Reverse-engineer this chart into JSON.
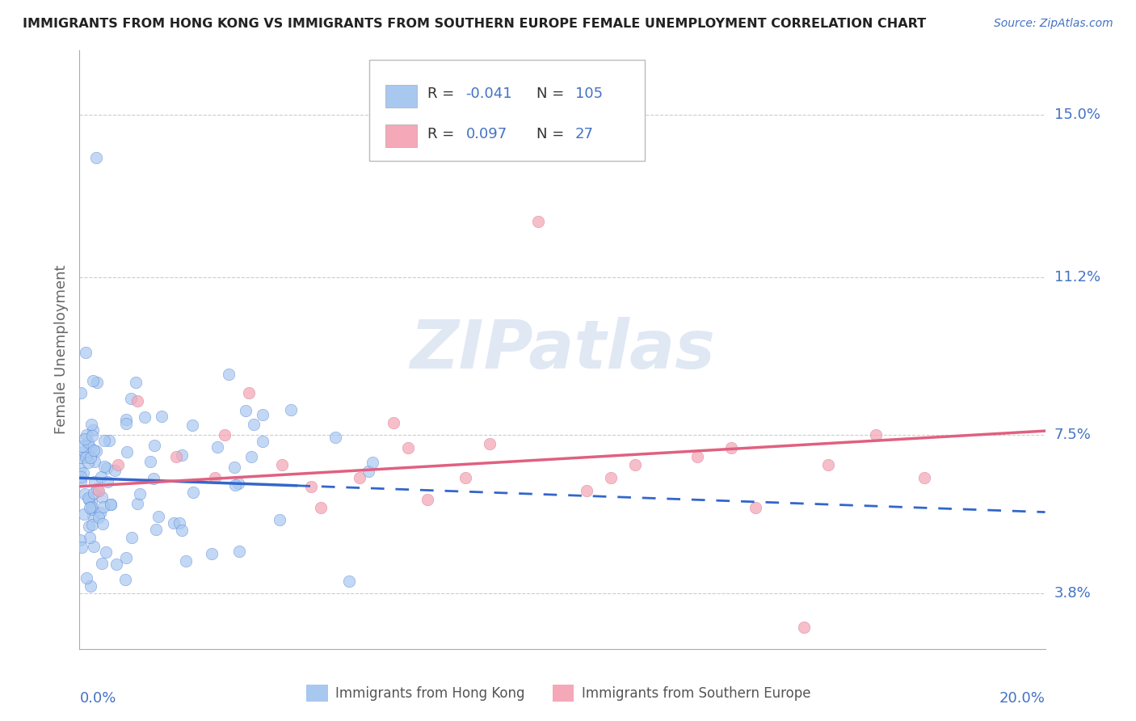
{
  "title": "IMMIGRANTS FROM HONG KONG VS IMMIGRANTS FROM SOUTHERN EUROPE FEMALE UNEMPLOYMENT CORRELATION CHART",
  "source": "Source: ZipAtlas.com",
  "ylabel": "Female Unemployment",
  "ytick_vals": [
    3.8,
    7.5,
    11.2,
    15.0
  ],
  "ytick_labels": [
    "3.8%",
    "7.5%",
    "11.2%",
    "15.0%"
  ],
  "xlim": [
    0.0,
    20.0
  ],
  "ylim": [
    2.5,
    16.5
  ],
  "series1_label": "Immigrants from Hong Kong",
  "series1_color": "#a8c8f0",
  "series1_line_color": "#3366cc",
  "series1_R": -0.041,
  "series1_N": 105,
  "series2_label": "Immigrants from Southern Europe",
  "series2_color": "#f4a8b8",
  "series2_line_color": "#e06080",
  "series2_R": 0.097,
  "series2_N": 27,
  "legend_text_color": "#4472c4",
  "background_color": "#ffffff",
  "grid_color": "#cccccc",
  "watermark_color": "#ccd9ee"
}
